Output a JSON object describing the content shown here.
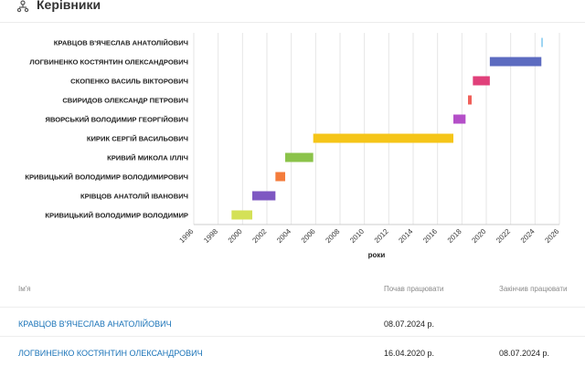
{
  "header": {
    "title": "Керівники",
    "icon": "people-hierarchy-icon"
  },
  "chart_data": {
    "type": "bar",
    "subtype": "gantt",
    "xlabel": "роки",
    "xlim": [
      1996,
      2026
    ],
    "x_ticks": [
      "1996",
      "1998",
      "2000",
      "2002",
      "2004",
      "2006",
      "2008",
      "2010",
      "2012",
      "2014",
      "2016",
      "2018",
      "2020",
      "2022",
      "2024",
      "2026"
    ],
    "grid": "vertical",
    "series": [
      {
        "name": "КРАВЦОВ В'ЯЧЕСЛАВ АНАТОЛІЙОВИЧ",
        "start": 2024.52,
        "end": 2024.62,
        "color": "#7ec8ef"
      },
      {
        "name": "ЛОГВИНЕНКО КОСТЯНТИН ОЛЕКСАНДРОВИЧ",
        "start": 2020.29,
        "end": 2024.52,
        "color": "#5c6bc0"
      },
      {
        "name": "СКОПЕНКО ВАСИЛЬ ВІКТОРОВИЧ",
        "start": 2018.9,
        "end": 2020.29,
        "color": "#e0407a"
      },
      {
        "name": "СВИРИДОВ ОЛЕКСАНДР ПЕТРОВИЧ",
        "start": 2018.5,
        "end": 2018.8,
        "color": "#f0605a"
      },
      {
        "name": "ЯВОРСЬКИЙ ВОЛОДИМИР ГЕОРГІЙОВИЧ",
        "start": 2017.3,
        "end": 2018.3,
        "color": "#b44fc8"
      },
      {
        "name": "КИРИК СЕРГІЙ ВАСИЛЬОВИЧ",
        "start": 2005.8,
        "end": 2017.3,
        "color": "#f5c518"
      },
      {
        "name": "КРИВИЙ МИКОЛА ІЛЛІЧ",
        "start": 2003.5,
        "end": 2005.8,
        "color": "#8bc34a"
      },
      {
        "name": "КРИВИЦЬКИЙ ВОЛОДИМИР ВОЛОДИМИРОВИЧ",
        "start": 2002.7,
        "end": 2003.5,
        "color": "#f47c3c"
      },
      {
        "name": "КРІВЦОВ АНАТОЛІЙ ІВАНОВИЧ",
        "start": 2000.8,
        "end": 2002.7,
        "color": "#7e57c2"
      },
      {
        "name": "КРИВИЦЬКИЙ ВОЛОДИМИР ВОЛОДИМИР",
        "start": 1999.1,
        "end": 2000.8,
        "color": "#d4e157"
      }
    ]
  },
  "table": {
    "headers": {
      "name": "Ім'я",
      "start": "Почав працювати",
      "end": "Закінчив працювати"
    },
    "rows": [
      {
        "name": "КРАВЦОВ В'ЯЧЕСЛАВ АНАТОЛІЙОВИЧ",
        "start": "08.07.2024 р.",
        "end": ""
      },
      {
        "name": "ЛОГВИНЕНКО КОСТЯНТИН ОЛЕКСАНДРОВИЧ",
        "start": "16.04.2020 р.",
        "end": "08.07.2024 р."
      }
    ]
  }
}
